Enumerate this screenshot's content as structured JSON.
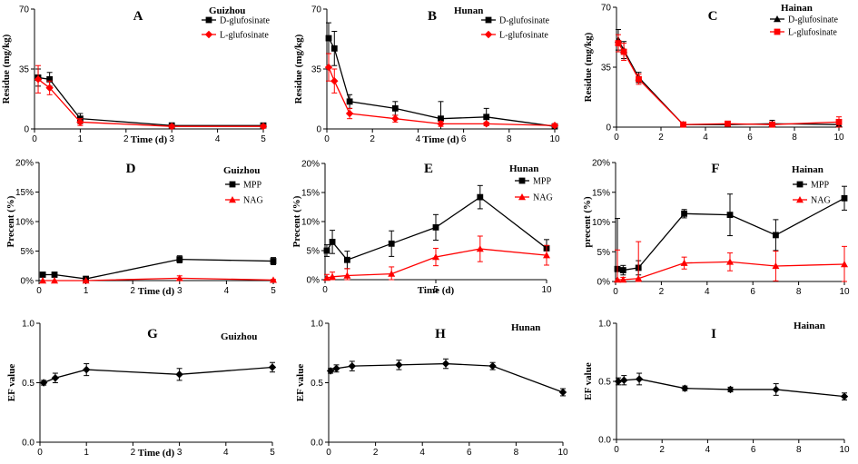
{
  "colors": {
    "black": "#000000",
    "red": "#ff0000"
  },
  "chart_data": [
    {
      "panel": "A",
      "site": "Guizhou",
      "type": "line",
      "xlabel": "Time (d)",
      "ylabel": "Residue (mg/kg)",
      "xlim": [
        0,
        5
      ],
      "xticks": [
        "0",
        "1",
        "2",
        "3",
        "4",
        "5"
      ],
      "ylim": [
        0,
        70
      ],
      "yticks": [
        "0",
        "35",
        "70"
      ],
      "series": [
        {
          "name": "D-glufosinate",
          "color": "#000000",
          "marker": "square",
          "x": [
            0.08,
            0.33,
            1,
            3,
            5
          ],
          "y": [
            30,
            29,
            6,
            2,
            2
          ],
          "err": [
            5,
            4,
            3,
            1.5,
            1
          ]
        },
        {
          "name": "L-glufosinate",
          "color": "#ff0000",
          "marker": "diamond",
          "x": [
            0.08,
            0.33,
            1,
            3,
            5
          ],
          "y": [
            29,
            24,
            4,
            1.5,
            1.5
          ],
          "err": [
            8,
            4,
            2,
            1,
            1
          ]
        }
      ]
    },
    {
      "panel": "B",
      "site": "Hunan",
      "type": "line",
      "xlabel": "Time (d)",
      "ylabel": "Residue (mg/kg)",
      "xlim": [
        0,
        10
      ],
      "xticks": [
        "0",
        "2",
        "4",
        "6",
        "8",
        "10"
      ],
      "ylim": [
        0,
        70
      ],
      "yticks": [
        "0",
        "35",
        "70"
      ],
      "series": [
        {
          "name": "D-glufosinate",
          "color": "#000000",
          "marker": "square",
          "x": [
            0.08,
            0.33,
            1,
            3,
            5,
            7,
            10
          ],
          "y": [
            53,
            47,
            16,
            12,
            6,
            7,
            1.5
          ],
          "err": [
            9,
            10,
            4,
            4,
            10,
            5,
            1
          ]
        },
        {
          "name": "L-glufosinate",
          "color": "#ff0000",
          "marker": "diamond",
          "x": [
            0.08,
            0.33,
            1,
            3,
            5,
            7,
            10
          ],
          "y": [
            36,
            28,
            9,
            6,
            3,
            3,
            2
          ],
          "err": [
            8,
            7,
            3,
            2,
            1.5,
            1,
            1
          ]
        }
      ]
    },
    {
      "panel": "C",
      "site": "Hainan",
      "type": "line",
      "xlabel": "",
      "ylabel": "Residue (mg/kg)",
      "xlim": [
        0,
        10
      ],
      "xticks": [
        "0",
        "2",
        "4",
        "6",
        "8",
        "10"
      ],
      "ylim": [
        0,
        70
      ],
      "yticks": [
        "0",
        "35",
        "70"
      ],
      "series": [
        {
          "name": "D-glufosinate",
          "color": "#000000",
          "marker": "triangle",
          "x": [
            0.08,
            0.33,
            1,
            3,
            5,
            7,
            10
          ],
          "y": [
            51,
            45,
            29,
            1.5,
            1.5,
            2,
            1.5
          ],
          "err": [
            6,
            5,
            3,
            1,
            1,
            2,
            1
          ]
        },
        {
          "name": "L-glufosinate",
          "color": "#ff0000",
          "marker": "square",
          "x": [
            0.08,
            0.33,
            1,
            3,
            5,
            7,
            10
          ],
          "y": [
            49,
            44,
            28,
            1.5,
            2,
            1.5,
            3
          ],
          "err": [
            5,
            5,
            3,
            1,
            1,
            1,
            3
          ]
        }
      ]
    },
    {
      "panel": "D",
      "site": "Guizhou",
      "type": "line",
      "xlabel": "Time (d)",
      "ylabel": "Precent (%)",
      "xlim": [
        0,
        5
      ],
      "xticks": [
        "0",
        "1",
        "2",
        "3",
        "4",
        "5"
      ],
      "ylim": [
        0,
        20
      ],
      "yticks": [
        "0%",
        "5%",
        "10%",
        "15%",
        "20%"
      ],
      "series": [
        {
          "name": "MPP",
          "color": "#000000",
          "marker": "square",
          "x": [
            0.08,
            0.33,
            1,
            3,
            5
          ],
          "y": [
            1,
            1,
            0.3,
            3.6,
            3.3
          ],
          "err": [
            0.3,
            0.3,
            0.2,
            0.6,
            0.6
          ]
        },
        {
          "name": "NAG",
          "color": "#ff0000",
          "marker": "triangle",
          "x": [
            0.08,
            0.33,
            1,
            3,
            5
          ],
          "y": [
            0,
            0,
            0,
            0.4,
            0.1
          ],
          "err": [
            0,
            0,
            0,
            0.4,
            0.1
          ]
        }
      ]
    },
    {
      "panel": "E",
      "site": "Hunan",
      "type": "line",
      "xlabel": "Time (d)",
      "ylabel": "Precent (%)",
      "xlim": [
        0,
        10
      ],
      "xticks": [
        "0",
        "5",
        "10"
      ],
      "ylim": [
        0,
        20
      ],
      "yticks": [
        "0%",
        "5%",
        "10%",
        "15%",
        "20%"
      ],
      "series": [
        {
          "name": "MPP",
          "color": "#000000",
          "marker": "square",
          "x": [
            0.08,
            0.33,
            1,
            3,
            5,
            7,
            10
          ],
          "y": [
            5,
            6.5,
            3.4,
            6.2,
            9,
            14.2,
            5.4
          ],
          "err": [
            1,
            2,
            1.5,
            2.2,
            2.2,
            2,
            1.5
          ]
        },
        {
          "name": "NAG",
          "color": "#ff0000",
          "marker": "triangle",
          "x": [
            0.08,
            0.33,
            1,
            3,
            5,
            7,
            10
          ],
          "y": [
            0.3,
            0.5,
            0.7,
            1,
            3.9,
            5.3,
            4.2
          ],
          "err": [
            0.6,
            0.8,
            1.2,
            1.2,
            1.5,
            2.2,
            1.7
          ]
        }
      ]
    },
    {
      "panel": "F",
      "site": "Hainan",
      "type": "line",
      "xlabel": "",
      "ylabel": "precent (%)",
      "xlim": [
        0,
        10
      ],
      "xticks": [
        "0",
        "2",
        "4",
        "6",
        "8",
        "10"
      ],
      "ylim": [
        0,
        20
      ],
      "yticks": [
        "0%",
        "5%",
        "10%",
        "15%",
        "20%"
      ],
      "series": [
        {
          "name": "MPP",
          "color": "#000000",
          "marker": "square",
          "x": [
            0.08,
            0.33,
            1,
            3,
            5,
            7,
            10
          ],
          "y": [
            2.1,
            1.9,
            2.3,
            11.4,
            11.2,
            7.8,
            14
          ],
          "err": [
            8.5,
            0.8,
            1.2,
            0.7,
            3.5,
            2.6,
            2
          ]
        },
        {
          "name": "NAG",
          "color": "#ff0000",
          "marker": "triangle",
          "x": [
            0.08,
            0.33,
            1,
            3,
            5,
            7,
            10
          ],
          "y": [
            0.3,
            0.3,
            0.5,
            3.1,
            3.3,
            2.6,
            2.9
          ],
          "err": [
            5,
            0.4,
            6.2,
            1,
            1.5,
            2.5,
            3
          ]
        }
      ]
    },
    {
      "panel": "G",
      "site": "Guizhou",
      "type": "line",
      "xlabel": "Time (d)",
      "ylabel": "EF value",
      "xlim": [
        0,
        5
      ],
      "xticks": [
        "0",
        "1",
        "2",
        "3",
        "4",
        "5"
      ],
      "ylim": [
        0,
        1
      ],
      "yticks": [
        "0.0",
        "0.5",
        "1.0"
      ],
      "series": [
        {
          "name": "EF",
          "color": "#000000",
          "marker": "diamond",
          "x": [
            0.08,
            0.33,
            1,
            3,
            5
          ],
          "y": [
            0.5,
            0.54,
            0.61,
            0.57,
            0.63
          ],
          "err": [
            0.02,
            0.04,
            0.05,
            0.05,
            0.04
          ]
        }
      ]
    },
    {
      "panel": "H",
      "site": "Hunan",
      "type": "line",
      "xlabel": "",
      "ylabel": "EF value",
      "xlim": [
        0,
        10
      ],
      "xticks": [
        "0",
        "2",
        "4",
        "6",
        "8",
        "10"
      ],
      "ylim": [
        0,
        1
      ],
      "yticks": [
        "0.0",
        "0.5",
        "1.0"
      ],
      "series": [
        {
          "name": "EF",
          "color": "#000000",
          "marker": "diamond",
          "x": [
            0.08,
            0.33,
            1,
            3,
            5,
            7,
            10
          ],
          "y": [
            0.6,
            0.62,
            0.64,
            0.65,
            0.66,
            0.64,
            0.42
          ],
          "err": [
            0.02,
            0.03,
            0.04,
            0.04,
            0.04,
            0.03,
            0.03
          ]
        }
      ]
    },
    {
      "panel": "I",
      "site": "Hainan",
      "type": "line",
      "xlabel": "",
      "ylabel": "EF value",
      "xlim": [
        0,
        10
      ],
      "xticks": [
        "0",
        "2",
        "4",
        "6",
        "8",
        "10"
      ],
      "ylim": [
        0,
        1
      ],
      "yticks": [
        "0.0",
        "0.5",
        "1.0"
      ],
      "series": [
        {
          "name": "EF",
          "color": "#000000",
          "marker": "diamond",
          "x": [
            0.08,
            0.33,
            1,
            3,
            5,
            7,
            10
          ],
          "y": [
            0.5,
            0.51,
            0.52,
            0.44,
            0.43,
            0.43,
            0.37
          ],
          "err": [
            0.03,
            0.04,
            0.05,
            0.02,
            0.02,
            0.05,
            0.03
          ]
        }
      ]
    }
  ]
}
